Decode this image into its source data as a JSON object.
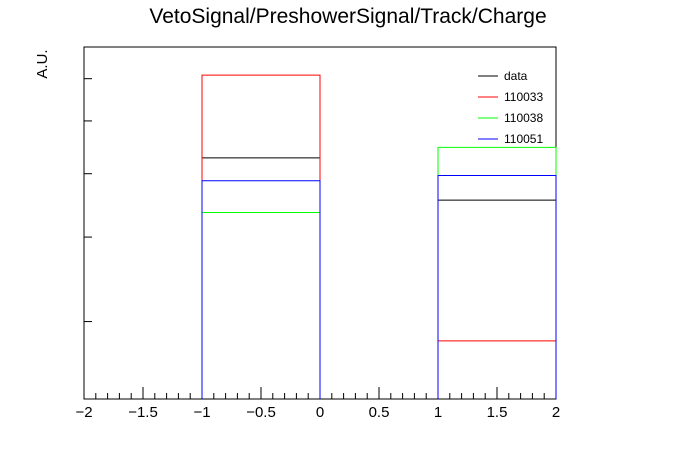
{
  "chart_data": {
    "type": "histogram",
    "title": "VetoSignal/PreshowerSignal/Track/Charge",
    "xlabel": "",
    "ylabel": "A.U.",
    "xlim": [
      -2,
      2
    ],
    "ylim": [
      0,
      1.0
    ],
    "x_ticks": [
      -2,
      -1.5,
      -1,
      -0.5,
      0,
      0.5,
      1,
      1.5,
      2
    ],
    "x_tick_labels": [
      "−2",
      "−1.5",
      "−1",
      "−0.5",
      "0",
      "0.5",
      "1",
      "1.5",
      "2"
    ],
    "bin_edges": [
      -1,
      0,
      1,
      2
    ],
    "series": [
      {
        "name": "data",
        "color": "#000000",
        "values": [
          0.685,
          0,
          0.565
        ]
      },
      {
        "name": "110033",
        "color": "#ff0000",
        "values": [
          0.92,
          0,
          0.165
        ]
      },
      {
        "name": "110038",
        "color": "#00ff00",
        "values": [
          0.53,
          0,
          0.715
        ]
      },
      {
        "name": "110051",
        "color": "#0000ff",
        "values": [
          0.62,
          0,
          0.635
        ]
      }
    ],
    "legend_position": "top-right",
    "grid": false
  }
}
